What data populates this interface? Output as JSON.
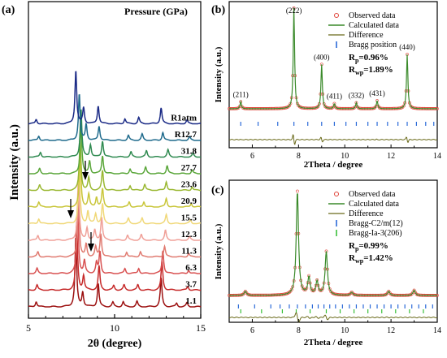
{
  "chart_data": [
    {
      "panel": "(a)",
      "type": "line",
      "title": "Pressure (GPa)",
      "xlabel": "2θ (degree)",
      "ylabel": "Intensity (a.u.)",
      "xlim": [
        5,
        15
      ],
      "xticks": [
        5,
        10,
        15
      ],
      "grid": false,
      "series": [
        {
          "name": "1.1",
          "color": "#9c1010",
          "peaks": [
            [
              5.45,
              0.3
            ],
            [
              7.75,
              3.9
            ],
            [
              8.15,
              0.8
            ],
            [
              9.05,
              1.3
            ],
            [
              9.9,
              0.25
            ],
            [
              10.5,
              0.28
            ],
            [
              11.3,
              0.3
            ],
            [
              12.7,
              1.6
            ],
            [
              13.6,
              0.2
            ],
            [
              14.2,
              0.22
            ]
          ]
        },
        {
          "name": "3.7",
          "color": "#c62a2a",
          "peaks": [
            [
              5.5,
              0.3
            ],
            [
              7.8,
              3.8
            ],
            [
              8.2,
              0.8
            ],
            [
              9.1,
              1.35
            ],
            [
              9.95,
              0.25
            ],
            [
              10.55,
              0.28
            ],
            [
              11.35,
              0.3
            ],
            [
              12.75,
              1.6
            ],
            [
              14.25,
              0.22
            ]
          ]
        },
        {
          "name": "6.3",
          "color": "#d85050",
          "peaks": [
            [
              5.5,
              0.28
            ],
            [
              7.85,
              3.8
            ],
            [
              8.25,
              0.7
            ],
            [
              8.95,
              0.6
            ],
            [
              9.15,
              1.2
            ],
            [
              10.6,
              0.28
            ],
            [
              11.4,
              0.3
            ],
            [
              12.8,
              1.3
            ],
            [
              14.3,
              0.2
            ]
          ]
        },
        {
          "name": "11.3",
          "color": "#e07a70",
          "peaks": [
            [
              5.55,
              0.28
            ],
            [
              7.9,
              3.6
            ],
            [
              8.35,
              0.7
            ],
            [
              8.9,
              0.55
            ],
            [
              9.2,
              1.3
            ],
            [
              10.7,
              0.28
            ],
            [
              11.5,
              0.3
            ],
            [
              12.9,
              0.6
            ],
            [
              14.3,
              0.2
            ]
          ]
        },
        {
          "name": "12.3",
          "color": "#f0a098",
          "peaks": [
            [
              5.55,
              0.28
            ],
            [
              7.9,
              3.6
            ],
            [
              8.4,
              0.7
            ],
            [
              8.85,
              0.55
            ],
            [
              9.25,
              1.3
            ],
            [
              10.75,
              0.28
            ],
            [
              11.55,
              0.3
            ],
            [
              12.95,
              0.55
            ],
            [
              14.35,
              0.2
            ]
          ]
        },
        {
          "name": "15.5",
          "color": "#f0d878",
          "peaks": [
            [
              5.6,
              0.28
            ],
            [
              7.95,
              3.2
            ],
            [
              8.45,
              0.7
            ],
            [
              8.9,
              0.55
            ],
            [
              9.3,
              1.1
            ],
            [
              10.8,
              0.28
            ],
            [
              11.6,
              0.3
            ],
            [
              13.0,
              0.5
            ],
            [
              14.4,
              0.2
            ]
          ]
        },
        {
          "name": "20.9",
          "color": "#c9c63a",
          "peaks": [
            [
              5.6,
              0.28
            ],
            [
              8.0,
              3.0
            ],
            [
              8.5,
              0.7
            ],
            [
              8.95,
              0.55
            ],
            [
              9.3,
              1.0
            ],
            [
              10.85,
              0.28
            ],
            [
              11.7,
              0.3
            ],
            [
              13.0,
              0.5
            ],
            [
              14.45,
              0.2
            ]
          ]
        },
        {
          "name": "23.6",
          "color": "#9ab832",
          "peaks": [
            [
              5.65,
              0.28
            ],
            [
              8.0,
              2.9
            ],
            [
              8.5,
              0.7
            ],
            [
              9.3,
              1.1
            ],
            [
              10.9,
              0.28
            ],
            [
              11.75,
              0.35
            ],
            [
              13.0,
              0.5
            ],
            [
              14.5,
              0.2
            ]
          ]
        },
        {
          "name": "27.7",
          "color": "#5aa63a",
          "peaks": [
            [
              5.65,
              0.28
            ],
            [
              8.05,
              2.8
            ],
            [
              8.55,
              0.7
            ],
            [
              9.3,
              1.0
            ],
            [
              10.9,
              0.28
            ],
            [
              11.8,
              0.35
            ],
            [
              13.05,
              0.45
            ],
            [
              14.5,
              0.2
            ]
          ]
        },
        {
          "name": "31.8",
          "color": "#2f8a50",
          "peaks": [
            [
              5.7,
              0.28
            ],
            [
              8.05,
              2.7
            ],
            [
              8.6,
              0.7
            ],
            [
              9.3,
              0.9
            ],
            [
              10.95,
              0.28
            ],
            [
              11.85,
              0.35
            ],
            [
              13.1,
              0.4
            ],
            [
              14.55,
              0.2
            ]
          ]
        },
        {
          "name": "R12.7",
          "color": "#1e6a8c",
          "peaks": [
            [
              5.6,
              0.25
            ],
            [
              7.95,
              2.6
            ],
            [
              8.35,
              0.9
            ],
            [
              9.1,
              0.8
            ],
            [
              10.8,
              0.28
            ],
            [
              11.6,
              0.35
            ],
            [
              12.8,
              0.45
            ],
            [
              14.35,
              0.2
            ]
          ]
        },
        {
          "name": "R1atm",
          "color": "#1a2a86",
          "peaks": [
            [
              5.45,
              0.25
            ],
            [
              7.75,
              3.0
            ],
            [
              8.2,
              0.9
            ],
            [
              9.05,
              1.0
            ],
            [
              10.6,
              0.28
            ],
            [
              11.4,
              0.35
            ],
            [
              12.7,
              0.9
            ],
            [
              14.2,
              0.2
            ]
          ]
        }
      ]
    },
    {
      "panel": "(b)",
      "type": "line",
      "xlabel": "2Theta / degree",
      "ylabel": "Intensity (a.u.)",
      "xlim": [
        5,
        14
      ],
      "xticks": [
        6,
        8,
        10,
        12,
        14
      ],
      "legend": {
        "placement": "top-right",
        "entries": [
          "Observed data",
          "Calculated data",
          "Difference",
          "Bragg position"
        ],
        "rp": "R",
        "rp_sub": "p",
        "rp_val": "=0.96%",
        "rwp": "R",
        "rwp_sub": "wp",
        "rwp_val": "=1.89%"
      },
      "peak_labels": [
        {
          "x": 5.5,
          "label": "(211)"
        },
        {
          "x": 7.8,
          "label": "(222)"
        },
        {
          "x": 9.0,
          "label": "(400)"
        },
        {
          "x": 9.55,
          "label": "(411)"
        },
        {
          "x": 10.5,
          "label": "(332)"
        },
        {
          "x": 11.4,
          "label": "(431)"
        },
        {
          "x": 12.7,
          "label": "(440)"
        }
      ],
      "peaks": [
        [
          5.5,
          0.07
        ],
        [
          7.8,
          1.0
        ],
        [
          9.0,
          0.44
        ],
        [
          9.55,
          0.05
        ],
        [
          10.5,
          0.06
        ],
        [
          11.4,
          0.08
        ],
        [
          12.7,
          0.54
        ]
      ],
      "bragg_positions": [
        5.5,
        6.25,
        7.1,
        7.8,
        8.4,
        9.0,
        9.55,
        10.05,
        10.5,
        11.0,
        11.4,
        11.85,
        12.3,
        12.7,
        13.1,
        13.5,
        13.85
      ]
    },
    {
      "panel": "(c)",
      "type": "line",
      "xlabel": "2Theta / degree",
      "ylabel": "Intensity (a.u.)",
      "xlim": [
        5,
        14
      ],
      "xticks": [
        6,
        8,
        10,
        12,
        14
      ],
      "legend": {
        "placement": "top-right",
        "entries": [
          "Observed data",
          "Calculated data",
          "Difference",
          "Bragg-C2/m(12)",
          "Bragg-Ia-3(206)"
        ],
        "rp": "R",
        "rp_sub": "p",
        "rp_val": "=0.99%",
        "rwp": "R",
        "rwp_sub": "wp",
        "rwp_val": "=1.42%"
      },
      "peaks": [
        [
          5.7,
          0.04
        ],
        [
          7.95,
          1.0
        ],
        [
          8.45,
          0.17
        ],
        [
          8.8,
          0.13
        ],
        [
          9.2,
          0.42
        ],
        [
          10.3,
          0.03
        ],
        [
          11.9,
          0.04
        ],
        [
          13.0,
          0.05
        ]
      ],
      "bragg_positions_1": [
        5.4,
        6.1,
        6.8,
        7.2,
        7.6,
        7.95,
        8.3,
        8.6,
        8.85,
        9.1,
        9.35,
        9.6,
        9.9,
        10.2,
        10.5,
        10.8,
        11.1,
        11.4,
        11.7,
        12.0,
        12.3,
        12.6,
        12.9,
        13.2,
        13.5,
        13.8
      ],
      "bragg_positions_2": [
        5.5,
        6.4,
        7.3,
        7.9,
        8.5,
        9.2,
        9.8,
        10.4,
        11.0,
        11.6,
        12.2,
        12.8,
        13.4
      ]
    }
  ]
}
